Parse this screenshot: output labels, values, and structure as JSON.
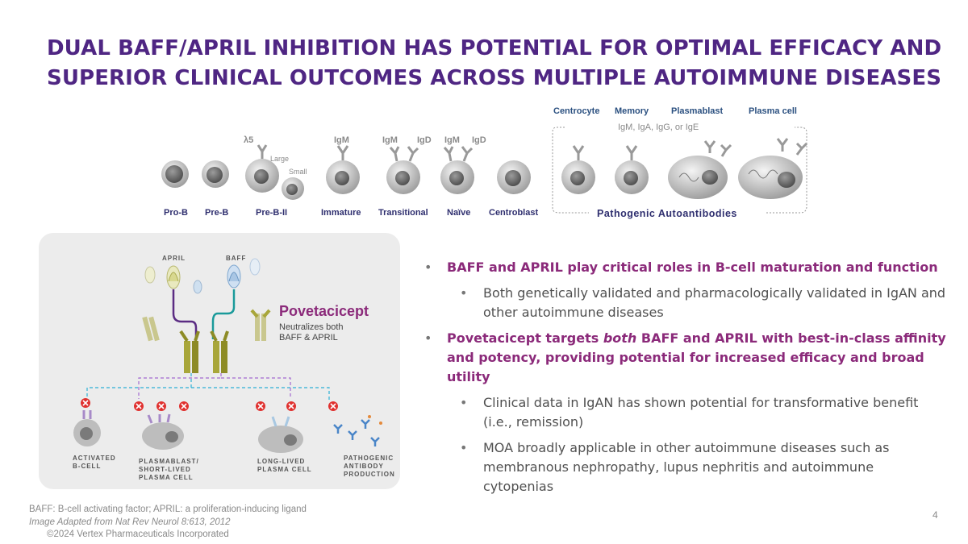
{
  "title": {
    "line1": "DUAL BAFF/APRIL INHIBITION HAS POTENTIAL FOR OPTIMAL EFFICACY AND",
    "line2": "SUPERIOR CLINICAL OUTCOMES ACROSS MULTIPLE AUTOIMMUNE DISEASES"
  },
  "maturation": {
    "stages": [
      "Pro-B",
      "Pre-B",
      "Pre-B-II",
      "Immature",
      "Transitional",
      "Naïve",
      "Centroblast"
    ],
    "top_labels": [
      "Centrocyte",
      "Memory",
      "Plasmablast",
      "Plasma cell"
    ],
    "receptor_labels": [
      "λ5",
      "IgM",
      "IgM",
      "IgD",
      "IgM",
      "IgD"
    ],
    "size_labels": [
      "Large",
      "Small"
    ],
    "isotypes": "IgM, IgA, IgG, or IgE",
    "group_label": "Pathogenic Autoantibodies"
  },
  "panel": {
    "april_label": "APRIL",
    "baff_label": "BAFF",
    "drug_name": "Povetacicept",
    "drug_desc_1": "Neutralizes both",
    "drug_desc_2": "BAFF & APRIL",
    "cells": [
      {
        "line1": "ACTIVATED",
        "line2": "B-CELL",
        "line3": ""
      },
      {
        "line1": "PLASMABLAST/",
        "line2": "SHORT-LIVED",
        "line3": "PLASMA CELL"
      },
      {
        "line1": "LONG-LIVED",
        "line2": "PLASMA CELL",
        "line3": ""
      },
      {
        "line1": "PATHOGENIC",
        "line2": "ANTIBODY",
        "line3": "PRODUCTION"
      }
    ],
    "colors": {
      "april": "#5b2c83",
      "baff": "#1a9a9a",
      "inhibit": "#e0312f",
      "drug": "#a8a63a"
    }
  },
  "bullets": {
    "b1": "BAFF and APRIL play critical roles in B-cell maturation and function",
    "b1_sub": "Both genetically validated and pharmacologically validated in IgAN and other autoimmune diseases",
    "b2_pre": "Povetacicept targets ",
    "b2_em": "both",
    "b2_post": " BAFF and APRIL with best-in-class affinity and potency, providing potential for increased efficacy and broad utility",
    "b2_sub1": "Clinical data in IgAN has shown potential for transformative benefit (i.e., remission)",
    "b2_sub2": "MOA broadly applicable in other autoimmune diseases such as membranous nephropathy, lupus nephritis and autoimmune cytopenias"
  },
  "footer": {
    "abbrev": "BAFF: B-cell activating factor; APRIL: a proliferation-inducing ligand",
    "source": "Image Adapted from Nat Rev Neurol 8:613, 2012",
    "copyright": "©2024 Vertex Pharmaceuticals Incorporated",
    "page": "4"
  },
  "colors": {
    "title": "#4f2683",
    "bullet": "#8b2a7a",
    "body": "#505050"
  }
}
